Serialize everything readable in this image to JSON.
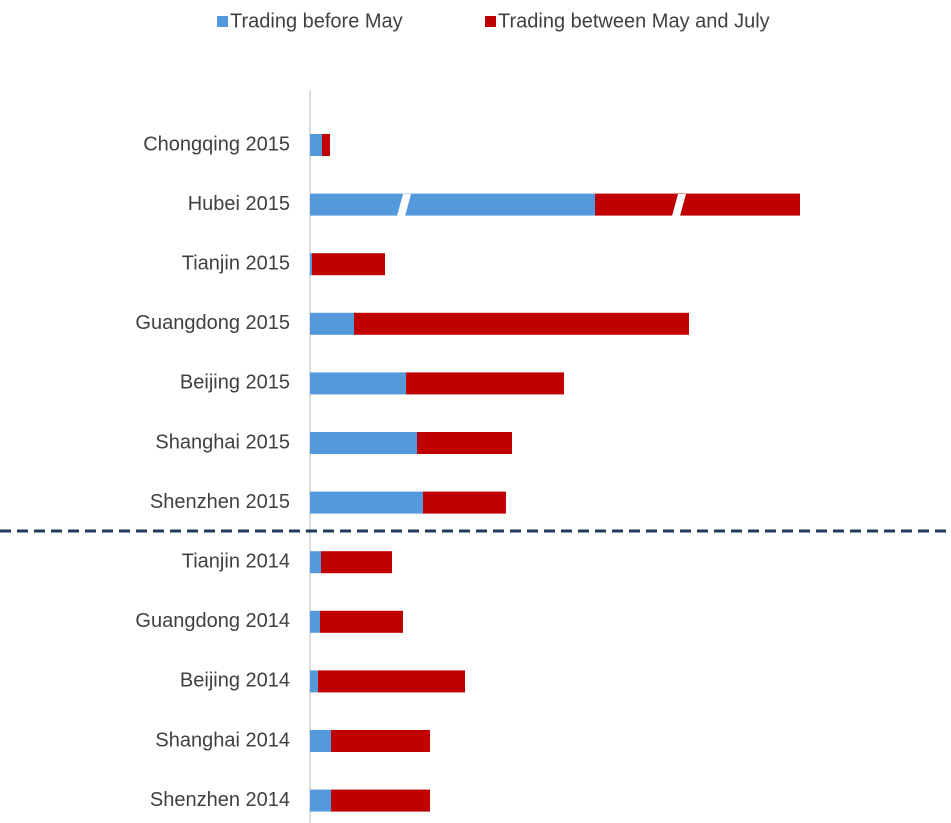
{
  "chart_data": {
    "type": "stacked-bar-horizontal",
    "categories": [
      "Chongqing 2015",
      "Hubei 2015",
      "Tianjin 2015",
      "Guangdong 2015",
      "Beijing 2015",
      "Shanghai 2015",
      "Shenzhen 2015",
      "Tianjin 2014",
      "Guangdong 2014",
      "Beijing 2014",
      "Shanghai 2014",
      "Shenzhen 2014"
    ],
    "series": [
      {
        "name": "Trading before May",
        "color": "#5599dd",
        "values": [
          12,
          285,
          2,
          44,
          96,
          107,
          113,
          11,
          10,
          8,
          21,
          21
        ]
      },
      {
        "name": "Trading between May and July",
        "color": "#c00000",
        "values": [
          8,
          205,
          73,
          335,
          158,
          95,
          83,
          71,
          83,
          147,
          99,
          99
        ]
      }
    ],
    "xlim": [
      0,
      640
    ],
    "legend": "top"
  }
}
